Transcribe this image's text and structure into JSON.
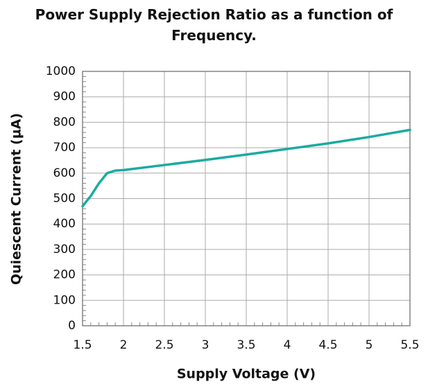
{
  "chart_data": {
    "type": "line",
    "title": "Power Supply Rejection Ratio as a function of Frequency.",
    "x_label": "Supply Voltage (V)",
    "y_label": "Quiescent Current (µA)",
    "x": [
      1.5,
      1.6,
      1.7,
      1.8,
      1.9,
      2.0,
      2.5,
      3.0,
      3.5,
      4.0,
      4.5,
      5.0,
      5.5
    ],
    "series": [
      {
        "name": "Quiescent Current",
        "color": "#1aaba0",
        "values": [
          470,
          510,
          560,
          600,
          610,
          612,
          632,
          652,
          673,
          695,
          717,
          742,
          770
        ]
      }
    ],
    "xlim": [
      1.5,
      5.5
    ],
    "xticks": [
      1.5,
      2,
      2.5,
      3,
      3.5,
      4,
      4.5,
      5,
      5.5
    ],
    "ylim": [
      0,
      1000
    ],
    "yticks": [
      0,
      100,
      200,
      300,
      400,
      500,
      600,
      700,
      800,
      900,
      1000
    ],
    "grid": true
  }
}
